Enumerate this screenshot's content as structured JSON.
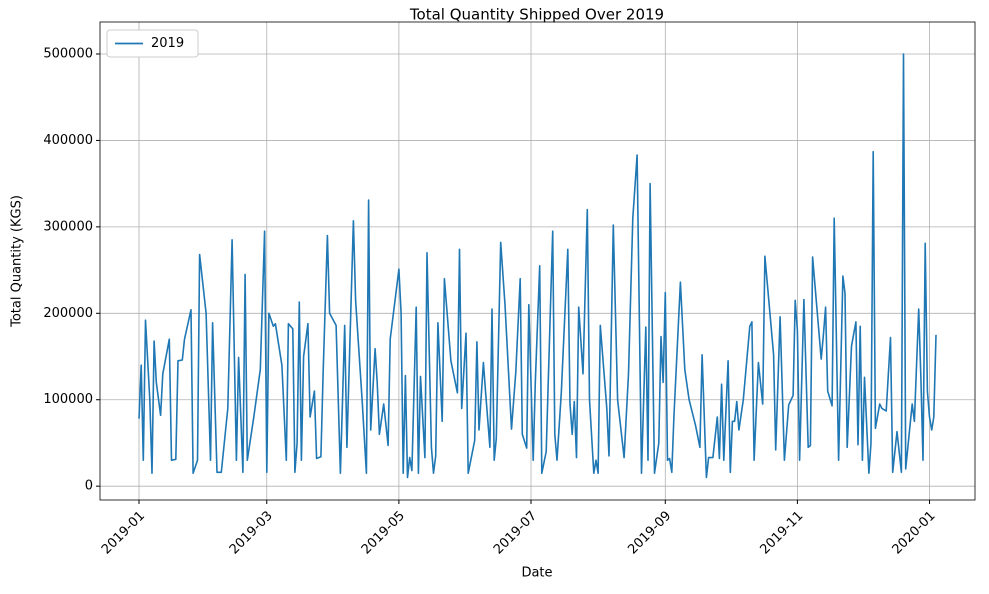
{
  "chart_data": {
    "type": "line",
    "title": "Total Quantity Shipped Over 2019",
    "x_label": "Date",
    "y_label": "Total Quantity (KGS)",
    "x": [
      0,
      1,
      2,
      3,
      5,
      6,
      7,
      8,
      10,
      11,
      14,
      15,
      17,
      18,
      20,
      21,
      24,
      25,
      27,
      28,
      31,
      33,
      34,
      36,
      38,
      41,
      43,
      45,
      46,
      48,
      49,
      50,
      53,
      56,
      58,
      59,
      60,
      62,
      63,
      66,
      68,
      69,
      71,
      72,
      73,
      74,
      75,
      76,
      78,
      79,
      81,
      82,
      84,
      85,
      87,
      88,
      91,
      93,
      95,
      96,
      99,
      100,
      103,
      105,
      106,
      107,
      109,
      110,
      111,
      113,
      115,
      116,
      120,
      121,
      122,
      123,
      124,
      125,
      126,
      128,
      129,
      130,
      132,
      133,
      135,
      136,
      137,
      138,
      140,
      141,
      144,
      147,
      148,
      149,
      151,
      152,
      155,
      156,
      157,
      159,
      160,
      162,
      163,
      164,
      165,
      167,
      169,
      172,
      174,
      176,
      177,
      179,
      180,
      182,
      183,
      185,
      186,
      188,
      191,
      192,
      193,
      195,
      198,
      199,
      200,
      201,
      202,
      203,
      205,
      207,
      208,
      210,
      211,
      212,
      213,
      216,
      217,
      219,
      221,
      224,
      226,
      228,
      230,
      232,
      234,
      235,
      236,
      238,
      240,
      241,
      242,
      243,
      244,
      245,
      246,
      247,
      250,
      252,
      254,
      257,
      259,
      260,
      262,
      263,
      265,
      267,
      268,
      269,
      270,
      272,
      273,
      274,
      275,
      276,
      277,
      279,
      282,
      283,
      284,
      286,
      288,
      289,
      293,
      294,
      296,
      298,
      300,
      302,
      303,
      304,
      305,
      307,
      309,
      310,
      311,
      315,
      316,
      317,
      318,
      320,
      321,
      323,
      325,
      326,
      327,
      329,
      331,
      332,
      333,
      334,
      335,
      337,
      338,
      339,
      340,
      342,
      343,
      345,
      347,
      348,
      350,
      352,
      353,
      354,
      356,
      357,
      358,
      360,
      361,
      362,
      363,
      364,
      365,
      366,
      367,
      368
    ],
    "series": [
      {
        "name": "2019",
        "color": "#1f77b4",
        "values": [
          78000,
          140000,
          30000,
          192000,
          100000,
          15000,
          168000,
          120000,
          82000,
          130000,
          170000,
          30000,
          31000,
          145000,
          146000,
          170000,
          204000,
          15000,
          30000,
          268000,
          200000,
          30000,
          189000,
          16000,
          16000,
          90000,
          285000,
          30000,
          149000,
          16000,
          245000,
          30000,
          80000,
          135000,
          295000,
          16000,
          200000,
          185000,
          188000,
          140000,
          30000,
          188000,
          182000,
          16000,
          50000,
          213000,
          30000,
          150000,
          188000,
          80000,
          110000,
          32000,
          34000,
          130000,
          290000,
          200000,
          186000,
          15000,
          186000,
          45000,
          307000,
          215000,
          100000,
          15000,
          331000,
          65000,
          159000,
          120000,
          60000,
          95000,
          47000,
          170000,
          251000,
          200000,
          15000,
          128000,
          10000,
          33000,
          18000,
          207000,
          15000,
          127000,
          33000,
          270000,
          45000,
          15000,
          35000,
          189000,
          75000,
          240000,
          145000,
          108000,
          274000,
          90000,
          177000,
          15000,
          53000,
          167000,
          65000,
          143000,
          110000,
          45000,
          205000,
          30000,
          55000,
          282000,
          210000,
          66000,
          132000,
          240000,
          60000,
          44000,
          210000,
          30000,
          120000,
          255000,
          15000,
          40000,
          295000,
          60000,
          30000,
          108000,
          274000,
          95000,
          60000,
          98000,
          33000,
          207000,
          130000,
          320000,
          100000,
          15000,
          30000,
          15000,
          186000,
          90000,
          35000,
          302000,
          100000,
          33000,
          130000,
          310000,
          383000,
          15000,
          184000,
          30000,
          350000,
          15000,
          50000,
          173000,
          120000,
          224000,
          30000,
          32000,
          16000,
          80000,
          236000,
          135000,
          100000,
          70000,
          45000,
          152000,
          10000,
          33000,
          33000,
          80000,
          32000,
          118000,
          30000,
          145000,
          16000,
          75000,
          75000,
          98000,
          65000,
          100000,
          185000,
          190000,
          30000,
          143000,
          95000,
          266000,
          152000,
          42000,
          196000,
          30000,
          94000,
          105000,
          215000,
          180000,
          30000,
          216000,
          45000,
          47000,
          265000,
          147000,
          175000,
          207000,
          110000,
          93000,
          310000,
          30000,
          243000,
          223000,
          45000,
          162000,
          190000,
          48000,
          185000,
          30000,
          126000,
          15000,
          50000,
          387000,
          67000,
          95000,
          90000,
          87000,
          172000,
          16000,
          63000,
          16000,
          500000,
          20000,
          70000,
          95000,
          75000,
          205000,
          125000,
          30000,
          281000,
          110000,
          80000,
          65000,
          80000,
          175000
        ]
      }
    ],
    "xlim": [
      -18,
      386
    ],
    "xticks": [
      {
        "value": 0,
        "label": "2019-01"
      },
      {
        "value": 59,
        "label": "2019-03"
      },
      {
        "value": 120,
        "label": "2019-05"
      },
      {
        "value": 181,
        "label": "2019-07"
      },
      {
        "value": 243,
        "label": "2019-09"
      },
      {
        "value": 304,
        "label": "2019-11"
      },
      {
        "value": 365,
        "label": "2020-01"
      }
    ],
    "ylim": [
      -16000,
      537000
    ],
    "yticks": [
      0,
      100000,
      200000,
      300000,
      400000,
      500000
    ],
    "grid": true,
    "legend": "upper left"
  }
}
